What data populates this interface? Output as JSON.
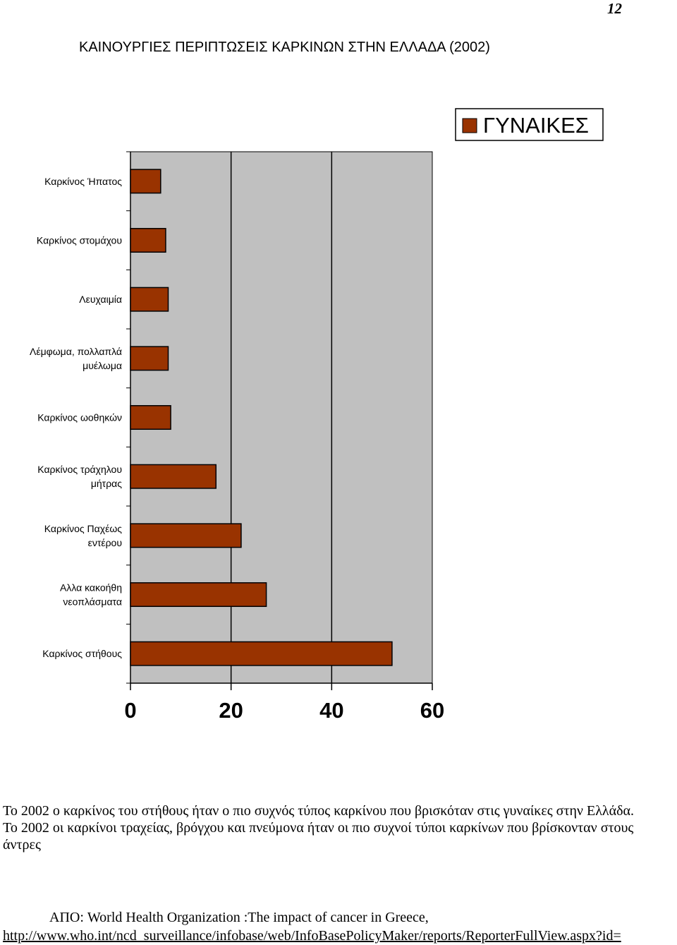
{
  "page": {
    "number": "12"
  },
  "title": "ΚΑΙΝΟΥΡΓΙΕΣ ΠΕΡΙΠΤΩΣΕΙΣ ΚΑΡΚΙΝΩΝ ΣΤΗΝ ΕΛΛΑΔΑ (2002)",
  "chart_data": {
    "type": "bar",
    "orientation": "horizontal",
    "categories": [
      "Καρκίνος Ήπατος",
      "Καρκίνος στομάχου",
      "Λευχαιμία",
      "Λέμφωμα, πολλαπλά μυέλωμα",
      "Καρκίνος ωοθηκών",
      "Καρκίνος τράχηλου μήτρας",
      "Καρκίνος Παχέως εντέρου",
      "Αλλα κακοήθη νεοπλάσματα",
      "Καρκίνος στήθους"
    ],
    "series": [
      {
        "name": "ΓΥΝΑΙΚΕΣ",
        "color": "#993300",
        "values": [
          6,
          7,
          7.5,
          7.5,
          8,
          17,
          22,
          27,
          52
        ]
      }
    ],
    "xlim": [
      0,
      60
    ],
    "xticks": [
      "0",
      "20",
      "40",
      "60"
    ],
    "plot_background": "#c0c0c0",
    "grid": "vertical",
    "legend_position": "top-right"
  },
  "caption": {
    "line1": "Το 2002 ο καρκίνος του στήθους ήταν ο πιο συχνός τύπος καρκίνου που βρισκόταν στις γυναίκες στην Ελλάδα.",
    "line2": "Το 2002 οι καρκίνοι τραχείας, βρόγχου και πνεύμονα  ήταν οι πιο συχνοί τύποι καρκίνων που βρίσκονταν στους άντρες"
  },
  "source": {
    "text": "ΑΠΟ: World Health Organization :The impact of cancer in Greece,",
    "url": "http://www.who.int/ncd_surveillance/infobase/web/InfoBasePolicyMaker/reports/ReporterFullView.aspx?id="
  }
}
